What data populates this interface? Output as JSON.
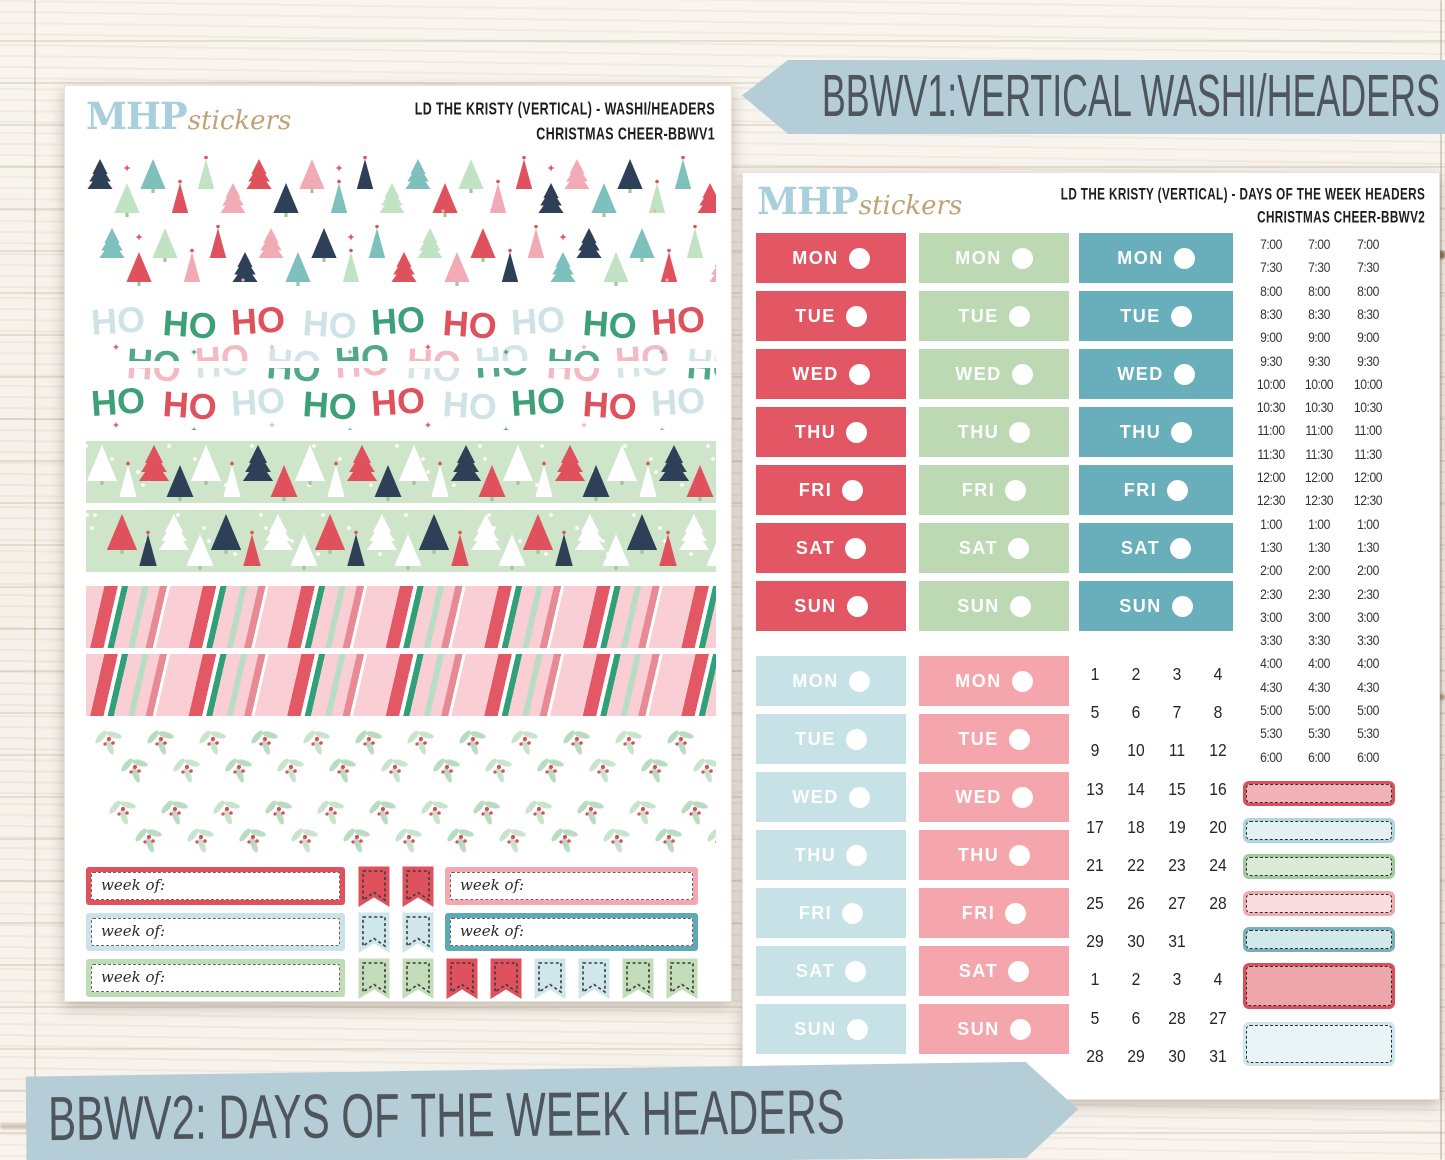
{
  "brand": {
    "mhp": "MHP",
    "stickers": "stickers"
  },
  "banners": {
    "top": "BBWV1:VERTICAL WASHI/HEADERS",
    "bottom": "BBWV2: DAYS OF THE WEEK HEADERS",
    "color": "#b4cdd6",
    "text_color": "#4e555c"
  },
  "sheet1": {
    "title_line1": "LD THE KRISTY (VERTICAL) - WASHI/HEADERS",
    "title_line2": "CHRISTMAS CHEER-BBWV1",
    "washi_strips": [
      {
        "pattern": "trees-white",
        "rows": 2
      },
      {
        "pattern": "hohoho",
        "rows": 2
      },
      {
        "pattern": "trees-green",
        "rows": 2
      },
      {
        "pattern": "candy-stripes",
        "rows": 2
      },
      {
        "pattern": "holly-berries",
        "rows": 2
      }
    ],
    "hohoho_word": "HO",
    "week_of_label": "week of:",
    "week_of_rows": [
      {
        "left_box": "red",
        "flags": [
          "red",
          "red"
        ],
        "right_box": "pink"
      },
      {
        "left_box": "lightblue",
        "flags": [
          "lightblue",
          "lightblue"
        ],
        "right_box": "teal"
      },
      {
        "left_box": "green",
        "flags": [
          "green",
          "green",
          "red",
          "red",
          "lightblue",
          "lightblue",
          "green",
          "green"
        ],
        "right_box": null
      }
    ]
  },
  "sheet2": {
    "title_line1": "LD THE KRISTY (VERTICAL) - DAYS OF THE WEEK HEADERS",
    "title_line2": "CHRISTMAS CHEER-BBWV2",
    "days": [
      "MON",
      "TUE",
      "WED",
      "THU",
      "FRI",
      "SAT",
      "SUN"
    ],
    "day_blocks": [
      {
        "color": "red",
        "col": 0,
        "band": "top"
      },
      {
        "color": "green",
        "col": 1,
        "band": "top"
      },
      {
        "color": "teal",
        "col": 2,
        "band": "top"
      },
      {
        "color": "lightblue",
        "col": 0,
        "band": "bottom"
      },
      {
        "color": "pink",
        "col": 1,
        "band": "bottom"
      }
    ],
    "times": [
      "7:00",
      "7:30",
      "8:00",
      "8:30",
      "9:00",
      "9:30",
      "10:00",
      "10:30",
      "11:00",
      "11:30",
      "12:00",
      "12:30",
      "1:00",
      "1:30",
      "2:00",
      "2:30",
      "3:00",
      "3:30",
      "4:00",
      "4:30",
      "5:00",
      "5:30",
      "6:00"
    ],
    "time_columns": 3,
    "date_rows": [
      [
        "1",
        "2",
        "3",
        "4"
      ],
      [
        "5",
        "6",
        "7",
        "8"
      ],
      [
        "9",
        "10",
        "11",
        "12"
      ],
      [
        "13",
        "14",
        "15",
        "16"
      ],
      [
        "17",
        "18",
        "19",
        "20"
      ],
      [
        "21",
        "22",
        "23",
        "24"
      ],
      [
        "25",
        "26",
        "27",
        "28"
      ],
      [
        "29",
        "30",
        "31"
      ],
      [
        "1",
        "2",
        "3",
        "4"
      ],
      [
        "5",
        "6",
        "28",
        "27"
      ],
      [
        "28",
        "29",
        "30",
        "31"
      ]
    ],
    "label_boxes": [
      {
        "color": "red",
        "size": "thin"
      },
      {
        "color": "lightblue",
        "size": "thin"
      },
      {
        "color": "green",
        "size": "thin"
      },
      {
        "color": "pink",
        "size": "thin"
      },
      {
        "color": "teal",
        "size": "thin"
      },
      {
        "color": "red",
        "size": "tall"
      },
      {
        "color": "lightblue",
        "size": "tall"
      }
    ]
  },
  "palette": {
    "red": "#e25763",
    "green": "#bcd9b3",
    "teal": "#68aebb",
    "lightblue": "#c6e2e7",
    "pink": "#f4a6ac",
    "navy": "#2e4058",
    "mint_bg": "#cfe5c9",
    "ho_green": "#3ea077",
    "ho_red": "#e0515e",
    "ho_blue": "#cfe3e7",
    "ho_pink": "#f2b3bb",
    "logo_blue": "#a9cedd",
    "logo_tan": "#bfa275"
  }
}
